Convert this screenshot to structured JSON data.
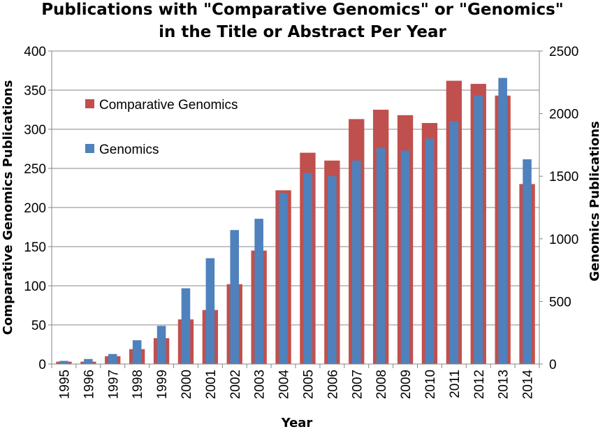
{
  "chart_data": {
    "type": "bar",
    "title_lines": [
      "Publications with \"Comparative Genomics\" or \"Genomics\"",
      "in the Title or Abstract Per Year"
    ],
    "xlabel": "Year",
    "ylabel_left": "Comparative Genomics Publications",
    "ylabel_right": "Genomics Publications",
    "categories": [
      "1995",
      "1996",
      "1997",
      "1998",
      "1999",
      "2000",
      "2001",
      "2002",
      "2003",
      "2004",
      "2005",
      "2006",
      "2007",
      "2008",
      "2009",
      "2010",
      "2011",
      "2012",
      "2013",
      "2014"
    ],
    "y_left": {
      "range": [
        0,
        400
      ],
      "ticks": [
        0,
        50,
        100,
        150,
        200,
        250,
        300,
        350,
        400
      ]
    },
    "y_right": {
      "range": [
        0,
        2500
      ],
      "ticks": [
        0,
        500,
        1000,
        1500,
        2000,
        2500
      ]
    },
    "grid": true,
    "legend_position": "top-left",
    "series": [
      {
        "name": "Comparative Genomics",
        "axis": "left",
        "color": "#C0504D",
        "values": [
          3,
          3,
          10,
          19,
          33,
          57,
          69,
          102,
          145,
          222,
          270,
          260,
          313,
          325,
          318,
          308,
          362,
          358,
          343,
          230
        ]
      },
      {
        "name": "Genomics",
        "axis": "right",
        "color": "#4F81BD",
        "values": [
          25,
          40,
          80,
          190,
          305,
          605,
          845,
          1070,
          1160,
          1365,
          1525,
          1500,
          1625,
          1725,
          1705,
          1800,
          1940,
          2145,
          2285,
          1635
        ]
      }
    ]
  }
}
